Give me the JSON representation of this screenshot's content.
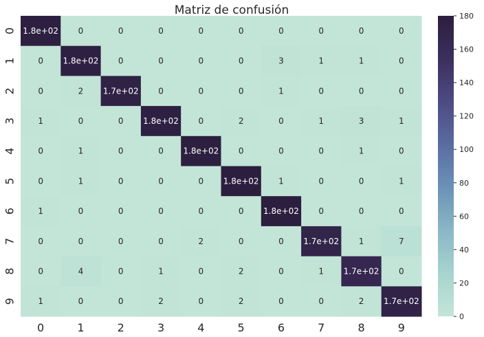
{
  "chart_data": {
    "type": "heatmap",
    "title": "Matriz de confusión",
    "xlabel": "",
    "ylabel": "",
    "x_categories": [
      "0",
      "1",
      "2",
      "3",
      "4",
      "5",
      "6",
      "7",
      "8",
      "9"
    ],
    "y_categories": [
      "0",
      "1",
      "2",
      "3",
      "4",
      "5",
      "6",
      "7",
      "8",
      "9"
    ],
    "values": [
      [
        178,
        0,
        0,
        0,
        0,
        0,
        0,
        0,
        0,
        0
      ],
      [
        0,
        177,
        0,
        0,
        0,
        0,
        3,
        1,
        1,
        0
      ],
      [
        0,
        2,
        174,
        0,
        0,
        0,
        1,
        0,
        0,
        0
      ],
      [
        1,
        0,
        0,
        177,
        0,
        2,
        0,
        1,
        3,
        1
      ],
      [
        0,
        1,
        0,
        0,
        179,
        0,
        0,
        0,
        1,
        0
      ],
      [
        0,
        1,
        0,
        0,
        0,
        180,
        1,
        0,
        0,
        1
      ],
      [
        1,
        0,
        0,
        0,
        0,
        0,
        180,
        0,
        0,
        0
      ],
      [
        0,
        0,
        0,
        0,
        2,
        0,
        0,
        170,
        1,
        7
      ],
      [
        0,
        4,
        0,
        1,
        0,
        2,
        0,
        1,
        166,
        0
      ],
      [
        1,
        0,
        0,
        2,
        0,
        2,
        0,
        0,
        2,
        173
      ]
    ],
    "cell_labels": [
      [
        "1.8e+02",
        "0",
        "0",
        "0",
        "0",
        "0",
        "0",
        "0",
        "0",
        "0"
      ],
      [
        "0",
        "1.8e+02",
        "0",
        "0",
        "0",
        "0",
        "3",
        "1",
        "1",
        "0"
      ],
      [
        "0",
        "2",
        "1.7e+02",
        "0",
        "0",
        "0",
        "1",
        "0",
        "0",
        "0"
      ],
      [
        "1",
        "0",
        "0",
        "1.8e+02",
        "0",
        "2",
        "0",
        "1",
        "3",
        "1"
      ],
      [
        "0",
        "1",
        "0",
        "0",
        "1.8e+02",
        "0",
        "0",
        "0",
        "1",
        "0"
      ],
      [
        "0",
        "1",
        "0",
        "0",
        "0",
        "1.8e+02",
        "1",
        "0",
        "0",
        "1"
      ],
      [
        "1",
        "0",
        "0",
        "0",
        "0",
        "0",
        "1.8e+02",
        "0",
        "0",
        "0"
      ],
      [
        "0",
        "0",
        "0",
        "0",
        "2",
        "0",
        "0",
        "1.7e+02",
        "1",
        "7"
      ],
      [
        "0",
        "4",
        "0",
        "1",
        "0",
        "2",
        "0",
        "1",
        "1.7e+02",
        "0"
      ],
      [
        "1",
        "0",
        "0",
        "2",
        "0",
        "2",
        "0",
        "0",
        "2",
        "1.7e+02"
      ]
    ],
    "vmin": 0,
    "vmax": 180,
    "colorbar_ticks": [
      0,
      20,
      40,
      60,
      80,
      100,
      120,
      140,
      160,
      180
    ],
    "colormap": [
      "#c3e5d7",
      "#a7d4ce",
      "#89b7c7",
      "#6b92b6",
      "#5a6ca2",
      "#4d4b83",
      "#3c2f5e",
      "#2c1e3e"
    ],
    "grid": false,
    "legend": "colorbar-right"
  }
}
